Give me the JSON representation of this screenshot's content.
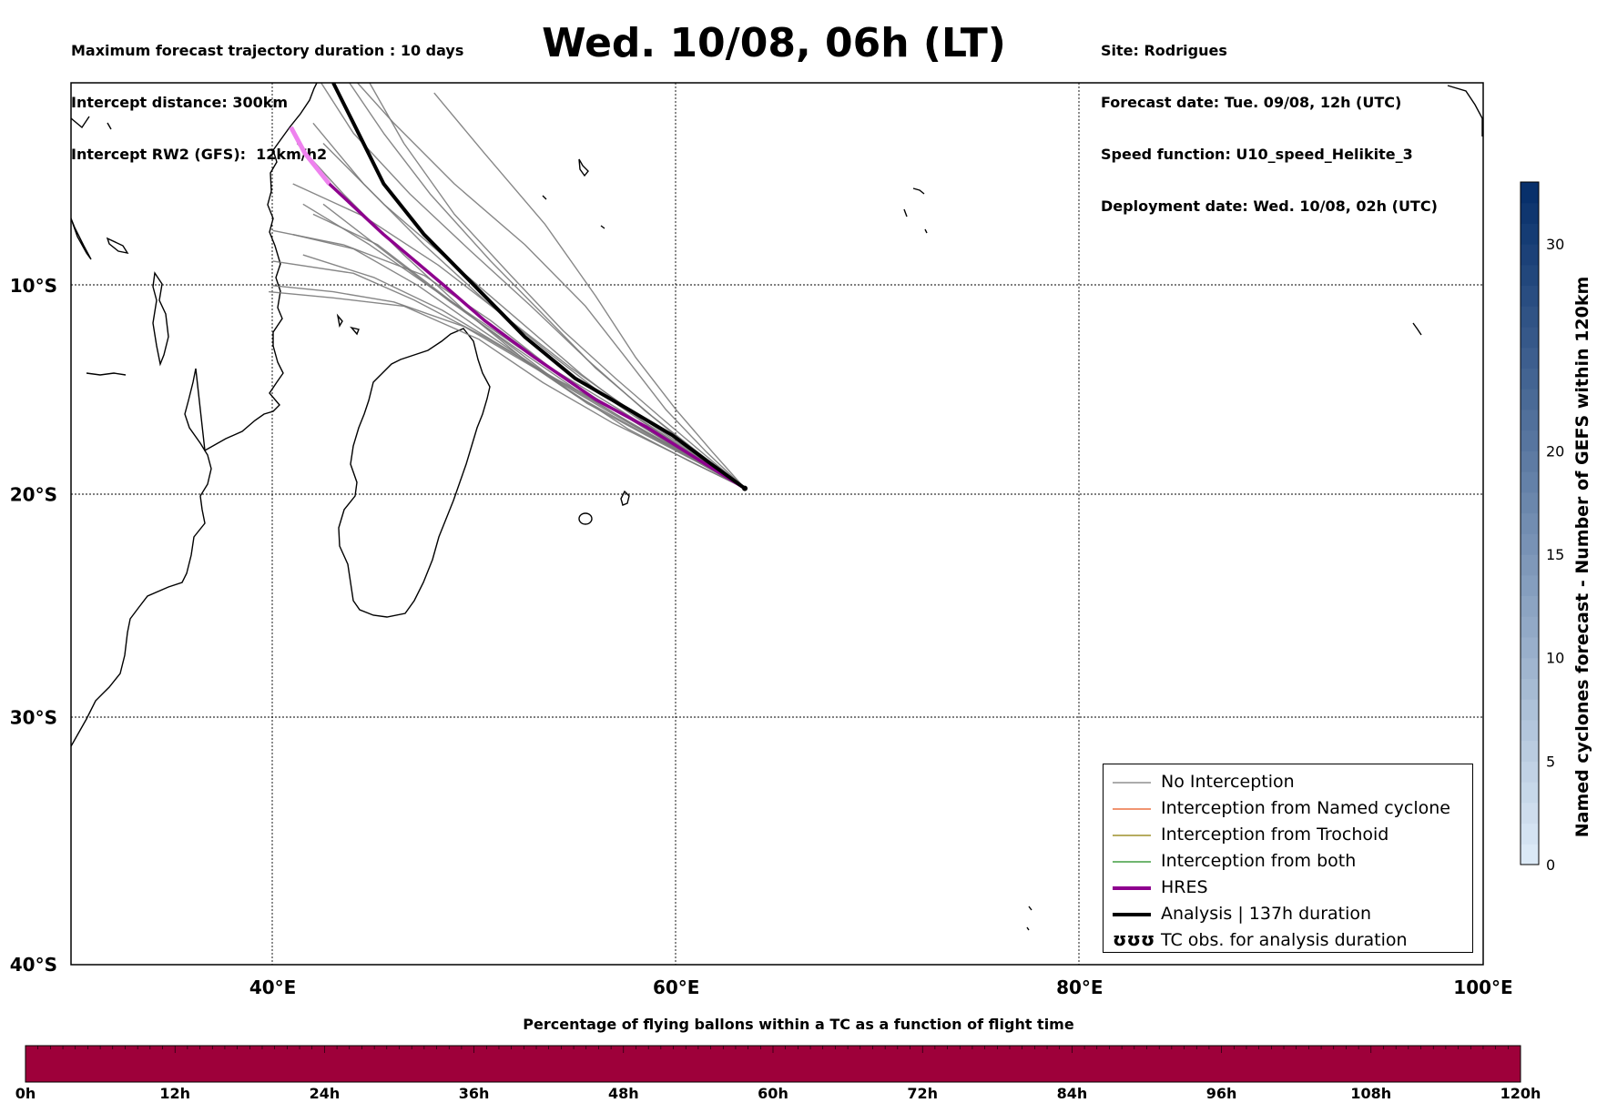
{
  "header_left": [
    "Maximum forecast trajectory duration : 10 days",
    "Intercept distance: 300km",
    "Intercept RW2 (GFS):  12km/h2"
  ],
  "header_right": [
    "Site: Rodrigues",
    "Forecast date: Tue. 09/08, 12h (UTC)",
    "Speed function: U10_speed_Helikite_3",
    "Deployment date: Wed. 10/08, 02h (UTC)"
  ],
  "title": "Wed. 10/08, 06h (LT)",
  "map": {
    "lon_range": [
      30,
      100
    ],
    "lat_range": [
      -40,
      0
    ],
    "lon_ticks": [
      {
        "value": 40,
        "label": "40°E"
      },
      {
        "value": 60,
        "label": "60°E"
      },
      {
        "value": 80,
        "label": "80°E"
      },
      {
        "value": 100,
        "label": "100°E"
      }
    ],
    "lat_ticks": [
      {
        "value": -10,
        "label": "10°S"
      },
      {
        "value": -20,
        "label": "20°S"
      },
      {
        "value": -30,
        "label": "30°S"
      },
      {
        "value": -40,
        "label": "40°S"
      }
    ],
    "origin": {
      "lon": 63.4,
      "lat": -19.7
    },
    "analysis_track": [
      [
        63.4,
        -19.7
      ],
      [
        61.5,
        -18.4
      ],
      [
        59.8,
        -17.2
      ],
      [
        57.5,
        -15.9
      ],
      [
        55.0,
        -14.5
      ],
      [
        52.5,
        -12.5
      ],
      [
        50.0,
        -10.0
      ],
      [
        47.5,
        -7.5
      ],
      [
        45.5,
        -5.0
      ],
      [
        44.0,
        -2.0
      ],
      [
        43.0,
        0.0
      ]
    ],
    "hres_track": [
      [
        63.4,
        -19.7
      ],
      [
        61.0,
        -18.3
      ],
      [
        58.5,
        -16.8
      ],
      [
        56.0,
        -15.5
      ],
      [
        53.0,
        -13.5
      ],
      [
        50.5,
        -11.7
      ],
      [
        48.5,
        -10.0
      ],
      [
        45.5,
        -7.5
      ],
      [
        42.8,
        -5.0
      ],
      [
        41.6,
        -3.5
      ],
      [
        40.9,
        -2.2
      ]
    ],
    "gefs_tracks": [
      [
        [
          63.4,
          -19.7
        ],
        [
          60.5,
          -18.1
        ],
        [
          57.5,
          -16.3
        ],
        [
          54.0,
          -14.5
        ],
        [
          50.5,
          -12.5
        ],
        [
          47.0,
          -10.7
        ],
        [
          44.0,
          -9.4
        ],
        [
          40.0,
          -8.8
        ]
      ],
      [
        [
          63.4,
          -19.7
        ],
        [
          60.5,
          -18.0
        ],
        [
          57.2,
          -16.0
        ],
        [
          53.8,
          -14.0
        ],
        [
          50.8,
          -11.7
        ],
        [
          47.5,
          -9.5
        ],
        [
          43.5,
          -8.0
        ],
        [
          40.0,
          -7.3
        ]
      ],
      [
        [
          63.4,
          -19.7
        ],
        [
          60.8,
          -18.0
        ],
        [
          58.0,
          -16.2
        ],
        [
          54.8,
          -14.0
        ],
        [
          51.5,
          -11.5
        ],
        [
          48.2,
          -9.0
        ],
        [
          44.5,
          -6.6
        ],
        [
          41.0,
          -5.0
        ]
      ],
      [
        [
          63.4,
          -19.7
        ],
        [
          61.0,
          -18.2
        ],
        [
          58.3,
          -16.5
        ],
        [
          55.3,
          -14.3
        ],
        [
          52.2,
          -11.7
        ],
        [
          49.0,
          -9.0
        ],
        [
          45.5,
          -6.0
        ],
        [
          42.5,
          -3.0
        ]
      ],
      [
        [
          63.4,
          -19.7
        ],
        [
          61.2,
          -18.1
        ],
        [
          58.8,
          -16.3
        ],
        [
          56.0,
          -14.0
        ],
        [
          53.5,
          -11.5
        ],
        [
          50.8,
          -8.8
        ],
        [
          47.8,
          -5.5
        ],
        [
          45.5,
          -2.5
        ],
        [
          43.8,
          0.0
        ]
      ],
      [
        [
          63.4,
          -19.7
        ],
        [
          61.5,
          -18.0
        ],
        [
          59.5,
          -16.0
        ],
        [
          57.5,
          -13.5
        ],
        [
          55.5,
          -11.0
        ],
        [
          52.5,
          -8.0
        ],
        [
          49.0,
          -5.0
        ],
        [
          46.0,
          -2.0
        ],
        [
          44.2,
          0.0
        ]
      ],
      [
        [
          63.4,
          -19.7
        ],
        [
          60.0,
          -17.9
        ],
        [
          56.5,
          -16.0
        ],
        [
          53.0,
          -14.0
        ],
        [
          49.5,
          -12.0
        ],
        [
          46.0,
          -10.8
        ],
        [
          43.0,
          -10.3
        ],
        [
          40.0,
          -10.0
        ]
      ],
      [
        [
          63.4,
          -19.7
        ],
        [
          60.2,
          -18.2
        ],
        [
          56.8,
          -16.6
        ],
        [
          53.4,
          -14.7
        ],
        [
          50.2,
          -12.6
        ],
        [
          46.5,
          -11.0
        ],
        [
          43.0,
          -10.6
        ],
        [
          39.8,
          -10.3
        ]
      ],
      [
        [
          63.4,
          -19.7
        ],
        [
          60.9,
          -18.3
        ],
        [
          58.0,
          -16.8
        ],
        [
          55.0,
          -15.0
        ],
        [
          52.0,
          -13.0
        ],
        [
          48.8,
          -10.8
        ],
        [
          45.5,
          -8.3
        ],
        [
          42.5,
          -6.0
        ]
      ],
      [
        [
          63.4,
          -19.7
        ],
        [
          61.3,
          -18.4
        ],
        [
          59.0,
          -17.0
        ],
        [
          56.4,
          -15.3
        ],
        [
          53.6,
          -13.2
        ],
        [
          50.6,
          -10.8
        ],
        [
          47.5,
          -8.0
        ],
        [
          44.5,
          -5.0
        ],
        [
          42.0,
          -2.0
        ]
      ],
      [
        [
          63.4,
          -19.7
        ],
        [
          61.8,
          -18.0
        ],
        [
          60.0,
          -16.0
        ],
        [
          58.0,
          -13.5
        ],
        [
          56.0,
          -10.5
        ],
        [
          53.5,
          -7.0
        ],
        [
          50.5,
          -3.5
        ],
        [
          48.0,
          -0.5
        ]
      ],
      [
        [
          63.4,
          -19.7
        ],
        [
          61.5,
          -18.2
        ],
        [
          59.4,
          -16.5
        ],
        [
          57.0,
          -14.5
        ],
        [
          54.4,
          -12.2
        ],
        [
          51.8,
          -9.5
        ],
        [
          49.0,
          -6.5
        ],
        [
          46.5,
          -3.0
        ],
        [
          44.8,
          0.0
        ]
      ],
      [
        [
          63.4,
          -19.7
        ],
        [
          61.1,
          -18.5
        ],
        [
          58.5,
          -17.2
        ],
        [
          55.6,
          -15.7
        ],
        [
          52.6,
          -13.7
        ],
        [
          49.6,
          -11.3
        ],
        [
          46.5,
          -8.5
        ],
        [
          43.5,
          -5.5
        ],
        [
          41.2,
          -3.0
        ]
      ],
      [
        [
          63.4,
          -19.7
        ],
        [
          60.6,
          -18.4
        ],
        [
          57.6,
          -16.9
        ],
        [
          54.6,
          -15.0
        ],
        [
          51.6,
          -12.8
        ],
        [
          48.5,
          -10.5
        ],
        [
          45.2,
          -8.0
        ],
        [
          42.0,
          -6.5
        ]
      ],
      [
        [
          63.4,
          -19.7
        ],
        [
          60.3,
          -18.0
        ],
        [
          57.0,
          -16.2
        ],
        [
          53.6,
          -14.3
        ],
        [
          50.4,
          -12.2
        ],
        [
          47.2,
          -10.0
        ],
        [
          44.0,
          -8.2
        ],
        [
          41.0,
          -7.5
        ]
      ],
      [
        [
          63.4,
          -19.7
        ],
        [
          61.0,
          -18.0
        ],
        [
          58.4,
          -16.0
        ],
        [
          55.6,
          -13.6
        ],
        [
          52.8,
          -11.0
        ],
        [
          49.8,
          -8.3
        ],
        [
          46.8,
          -5.5
        ],
        [
          44.0,
          -2.5
        ],
        [
          42.4,
          0.0
        ]
      ],
      [
        [
          63.4,
          -19.7
        ],
        [
          60.7,
          -18.2
        ],
        [
          57.8,
          -16.5
        ],
        [
          54.6,
          -14.6
        ],
        [
          51.3,
          -12.4
        ],
        [
          48.0,
          -10.2
        ],
        [
          44.8,
          -8.0
        ],
        [
          41.5,
          -6.0
        ]
      ],
      [
        [
          63.4,
          -19.7
        ],
        [
          61.0,
          -18.4
        ],
        [
          58.2,
          -17.0
        ],
        [
          55.0,
          -15.3
        ],
        [
          51.8,
          -13.2
        ],
        [
          48.4,
          -11.2
        ],
        [
          45.0,
          -9.6
        ],
        [
          41.5,
          -8.5
        ]
      ]
    ]
  },
  "legend": {
    "items": [
      {
        "label": "No Interception",
        "color": "#7a7a7a",
        "width": 1.2
      },
      {
        "label": "Interception from Named cyclone",
        "color": "#e8541c",
        "width": 1.2
      },
      {
        "label": "Interception from Trochoid",
        "color": "#8a7a00",
        "width": 1.2
      },
      {
        "label": "Interception from both",
        "color": "#1a8a1a",
        "width": 1.2
      },
      {
        "label": "HRES",
        "color": "#8e008e",
        "width": 4
      },
      {
        "label": "Analysis | 137h duration",
        "color": "#000000",
        "width": 4
      },
      {
        "label": "TC obs. for analysis duration",
        "color": "#000000",
        "symbol": "ʊʊʊ"
      }
    ]
  },
  "colorbar_right": {
    "label": "Named cyclones forecast - Number of GEFS within 120km",
    "min": 0,
    "max": 33,
    "ticks": [
      0,
      5,
      10,
      15,
      20,
      30
    ],
    "color_low": "#dbe9f6",
    "color_high": "#08306b"
  },
  "colorbar_bottom": {
    "title": "Percentage of flying ballons within a TC as a function of flight time",
    "fill_color": "#9e003a",
    "labels": [
      "0h",
      "12h",
      "24h",
      "36h",
      "48h",
      "60h",
      "72h",
      "84h",
      "96h",
      "108h",
      "120h"
    ]
  }
}
